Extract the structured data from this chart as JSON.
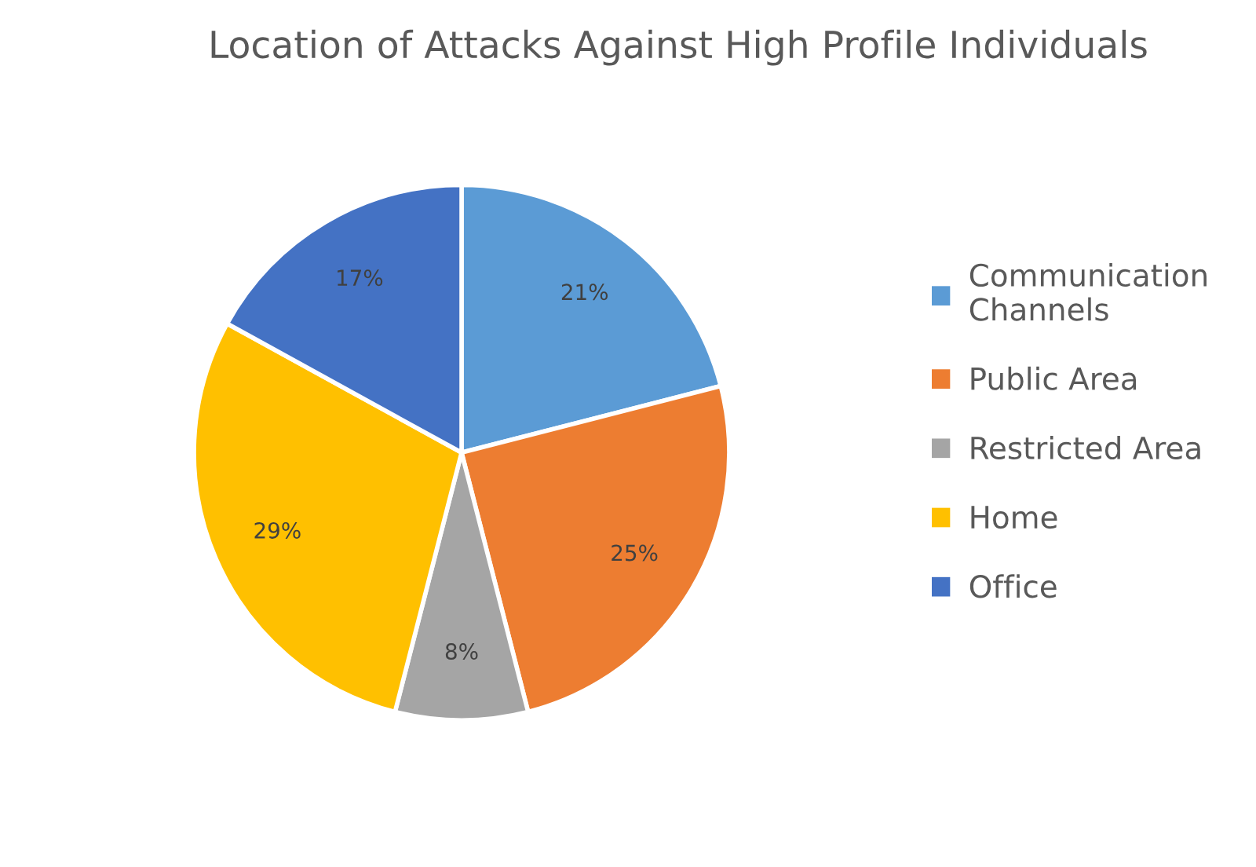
{
  "chart_data": {
    "type": "pie",
    "title": "Location of Attacks Against High Profile Individuals",
    "categories": [
      "Communication\nChannels",
      "Public Area",
      "Restricted Area",
      "Home",
      "Office"
    ],
    "values": [
      21,
      25,
      8,
      29,
      17
    ],
    "colors": [
      "#5b9bd5",
      "#ed7d31",
      "#a5a5a5",
      "#ffc000",
      "#4472c4"
    ],
    "value_labels": [
      "21%",
      "25%",
      "8%",
      "29%",
      "17%"
    ],
    "legend": "right"
  }
}
